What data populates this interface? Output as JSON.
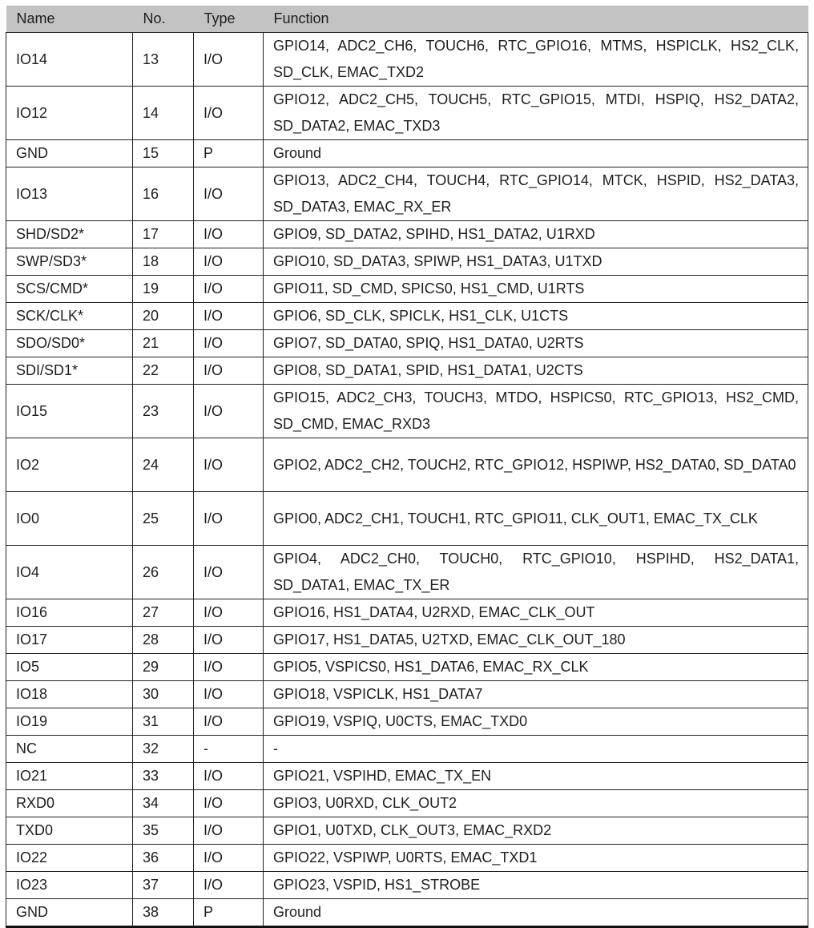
{
  "table": {
    "headers": [
      "Name",
      "No.",
      "Type",
      "Function"
    ],
    "rows": [
      {
        "name": "IO14",
        "no": "13",
        "type": "I/O",
        "function": "GPIO14, ADC2_CH6, TOUCH6, RTC_GPIO16, MTMS, HSPICLK, HS2_CLK, SD_CLK, EMAC_TXD2"
      },
      {
        "name": "IO12",
        "no": "14",
        "type": "I/O",
        "function": "GPIO12, ADC2_CH5, TOUCH5, RTC_GPIO15, MTDI, HSPIQ, HS2_DATA2, SD_DATA2, EMAC_TXD3"
      },
      {
        "name": "GND",
        "no": "15",
        "type": "P",
        "function": "Ground"
      },
      {
        "name": "IO13",
        "no": "16",
        "type": "I/O",
        "function": "GPIO13, ADC2_CH4, TOUCH4, RTC_GPIO14, MTCK, HSPID, HS2_DATA3, SD_DATA3, EMAC_RX_ER"
      },
      {
        "name": "SHD/SD2*",
        "no": "17",
        "type": "I/O",
        "function": "GPIO9, SD_DATA2, SPIHD, HS1_DATA2, U1RXD"
      },
      {
        "name": "SWP/SD3*",
        "no": "18",
        "type": "I/O",
        "function": "GPIO10, SD_DATA3, SPIWP, HS1_DATA3, U1TXD"
      },
      {
        "name": "SCS/CMD*",
        "no": "19",
        "type": "I/O",
        "function": "GPIO11, SD_CMD, SPICS0, HS1_CMD, U1RTS"
      },
      {
        "name": "SCK/CLK*",
        "no": "20",
        "type": "I/O",
        "function": "GPIO6, SD_CLK, SPICLK, HS1_CLK, U1CTS"
      },
      {
        "name": "SDO/SD0*",
        "no": "21",
        "type": "I/O",
        "function": "GPIO7, SD_DATA0, SPIQ, HS1_DATA0, U2RTS"
      },
      {
        "name": "SDI/SD1*",
        "no": "22",
        "type": "I/O",
        "function": "GPIO8, SD_DATA1, SPID, HS1_DATA1, U2CTS"
      },
      {
        "name": "IO15",
        "no": "23",
        "type": "I/O",
        "function": "GPIO15, ADC2_CH3, TOUCH3, MTDO, HSPICS0, RTC_GPIO13, HS2_CMD, SD_CMD, EMAC_RXD3"
      },
      {
        "name": "IO2",
        "no": "24",
        "type": "I/O",
        "function": "GPIO2, ADC2_CH2, TOUCH2, RTC_GPIO12, HSPIWP, HS2_DATA0, SD_DATA0"
      },
      {
        "name": "IO0",
        "no": "25",
        "type": "I/O",
        "function": "GPIO0, ADC2_CH1, TOUCH1, RTC_GPIO11, CLK_OUT1, EMAC_TX_CLK"
      },
      {
        "name": "IO4",
        "no": "26",
        "type": "I/O",
        "function": "GPIO4, ADC2_CH0, TOUCH0, RTC_GPIO10, HSPIHD, HS2_DATA1, SD_DATA1, EMAC_TX_ER"
      },
      {
        "name": "IO16",
        "no": "27",
        "type": "I/O",
        "function": "GPIO16, HS1_DATA4, U2RXD, EMAC_CLK_OUT"
      },
      {
        "name": "IO17",
        "no": "28",
        "type": "I/O",
        "function": "GPIO17, HS1_DATA5, U2TXD, EMAC_CLK_OUT_180"
      },
      {
        "name": "IO5",
        "no": "29",
        "type": "I/O",
        "function": "GPIO5, VSPICS0, HS1_DATA6, EMAC_RX_CLK"
      },
      {
        "name": "IO18",
        "no": "30",
        "type": "I/O",
        "function": "GPIO18, VSPICLK, HS1_DATA7"
      },
      {
        "name": "IO19",
        "no": "31",
        "type": "I/O",
        "function": "GPIO19, VSPIQ, U0CTS, EMAC_TXD0"
      },
      {
        "name": "NC",
        "no": "32",
        "type": "-",
        "function": "-"
      },
      {
        "name": "IO21",
        "no": "33",
        "type": "I/O",
        "function": "GPIO21, VSPIHD, EMAC_TX_EN"
      },
      {
        "name": "RXD0",
        "no": "34",
        "type": "I/O",
        "function": "GPIO3, U0RXD, CLK_OUT2"
      },
      {
        "name": "TXD0",
        "no": "35",
        "type": "I/O",
        "function": "GPIO1, U0TXD, CLK_OUT3, EMAC_RXD2"
      },
      {
        "name": "IO22",
        "no": "36",
        "type": "I/O",
        "function": "GPIO22, VSPIWP, U0RTS, EMAC_TXD1"
      },
      {
        "name": "IO23",
        "no": "37",
        "type": "I/O",
        "function": "GPIO23, VSPID, HS1_STROBE"
      },
      {
        "name": "GND",
        "no": "38",
        "type": "P",
        "function": "Ground"
      }
    ]
  }
}
